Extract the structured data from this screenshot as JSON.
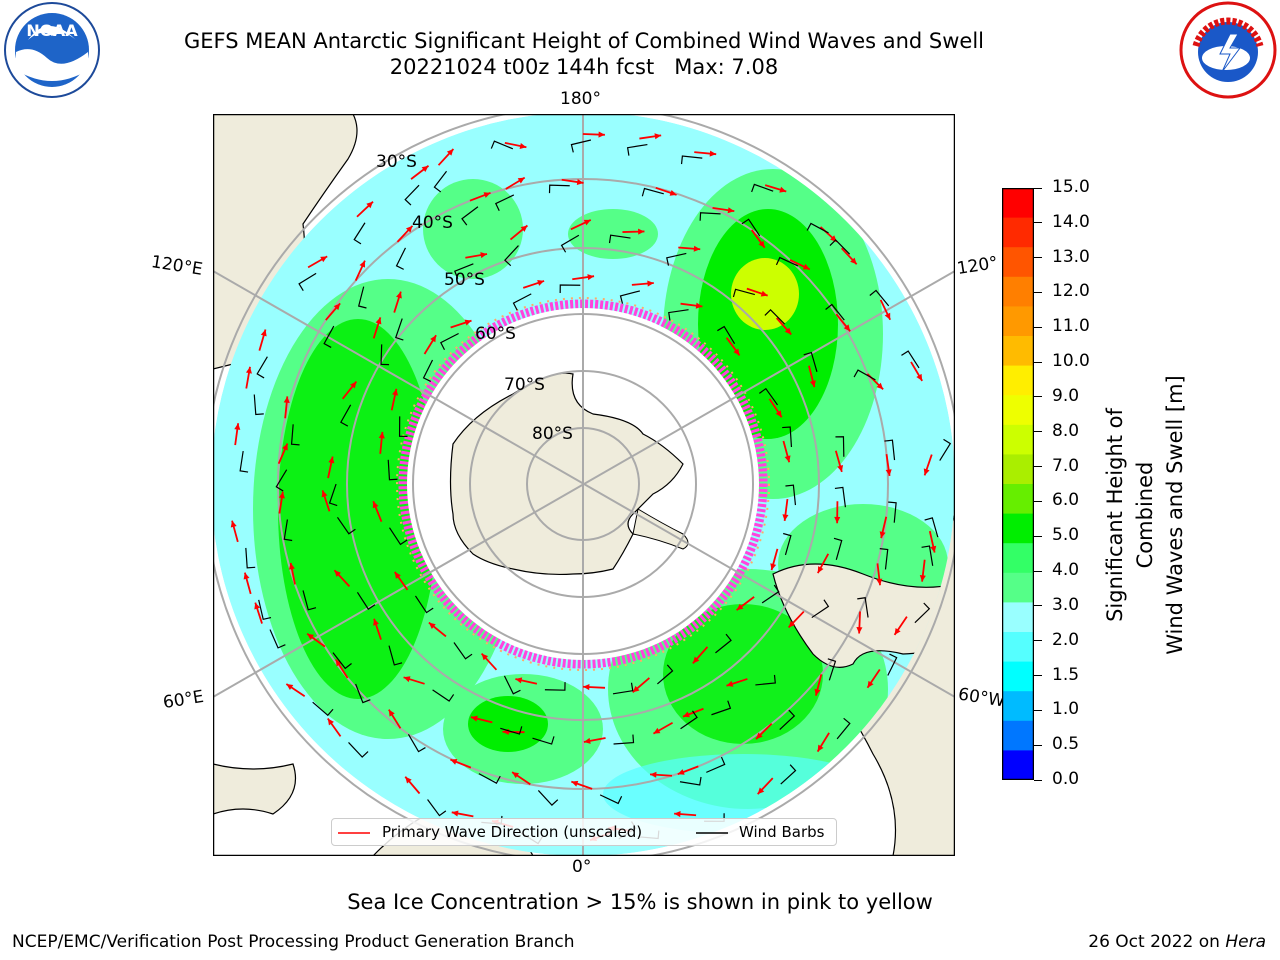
{
  "title": {
    "line1": "GEFS MEAN Antarctic Significant Height of Combined Wind Waves and Swell",
    "date": "20221024",
    "cycle": "t00z",
    "forecast_hour": "144h fcst",
    "max_label": "Max: 7.08"
  },
  "longitude_labels": {
    "top": "180°",
    "bottom": "0°",
    "upper_left": "120°E",
    "lower_left": "60°E",
    "upper_right": "120°",
    "lower_right": "60°W"
  },
  "latitude_labels": [
    "30°S",
    "40°S",
    "50°S",
    "60°S",
    "70°S",
    "80°S"
  ],
  "colorbar": {
    "label_line1": "Significant Height of Combined",
    "label_line2": "Wind Waves and Swell [m]",
    "ticks": [
      "15.0",
      "14.0",
      "13.0",
      "12.0",
      "11.0",
      "10.0",
      "9.0",
      "8.0",
      "7.0",
      "6.0",
      "5.0",
      "4.0",
      "3.0",
      "2.0",
      "1.5",
      "1.0",
      "0.5",
      "0.0"
    ],
    "colors_top_to_bottom": [
      "#ff0000",
      "#ff2a00",
      "#ff5500",
      "#ff7f00",
      "#ff9900",
      "#ffbb00",
      "#ffee00",
      "#eeff00",
      "#ccff00",
      "#aaee00",
      "#66ee00",
      "#00ee00",
      "#33ff66",
      "#55ff88",
      "#99ffff",
      "#55ffff",
      "#00ffff",
      "#00bbff",
      "#0077ff",
      "#0000ff"
    ]
  },
  "legend": {
    "wave_label": "Primary Wave Direction (unscaled)",
    "barb_label": "Wind Barbs",
    "wave_color": "#ff0000",
    "barb_color": "#000000"
  },
  "footer": {
    "note": "Sea Ice Concentration > 15% is shown in pink to yellow",
    "credit_left": "NCEP/EMC/Verification Post Processing Product Generation Branch",
    "credit_date": "26 Oct 2022 on",
    "credit_host": "Hera"
  },
  "logos": {
    "left": "NOAA",
    "right": "NATIONAL WEATHER SERVICE"
  },
  "colors": {
    "land": "#efecdc",
    "ocean_low": "#99ffff",
    "ocean_mid": "#55ff88",
    "ocean_high": "#00ee00",
    "ice": "#ffffff",
    "ice_edge": "#ff44dd"
  }
}
